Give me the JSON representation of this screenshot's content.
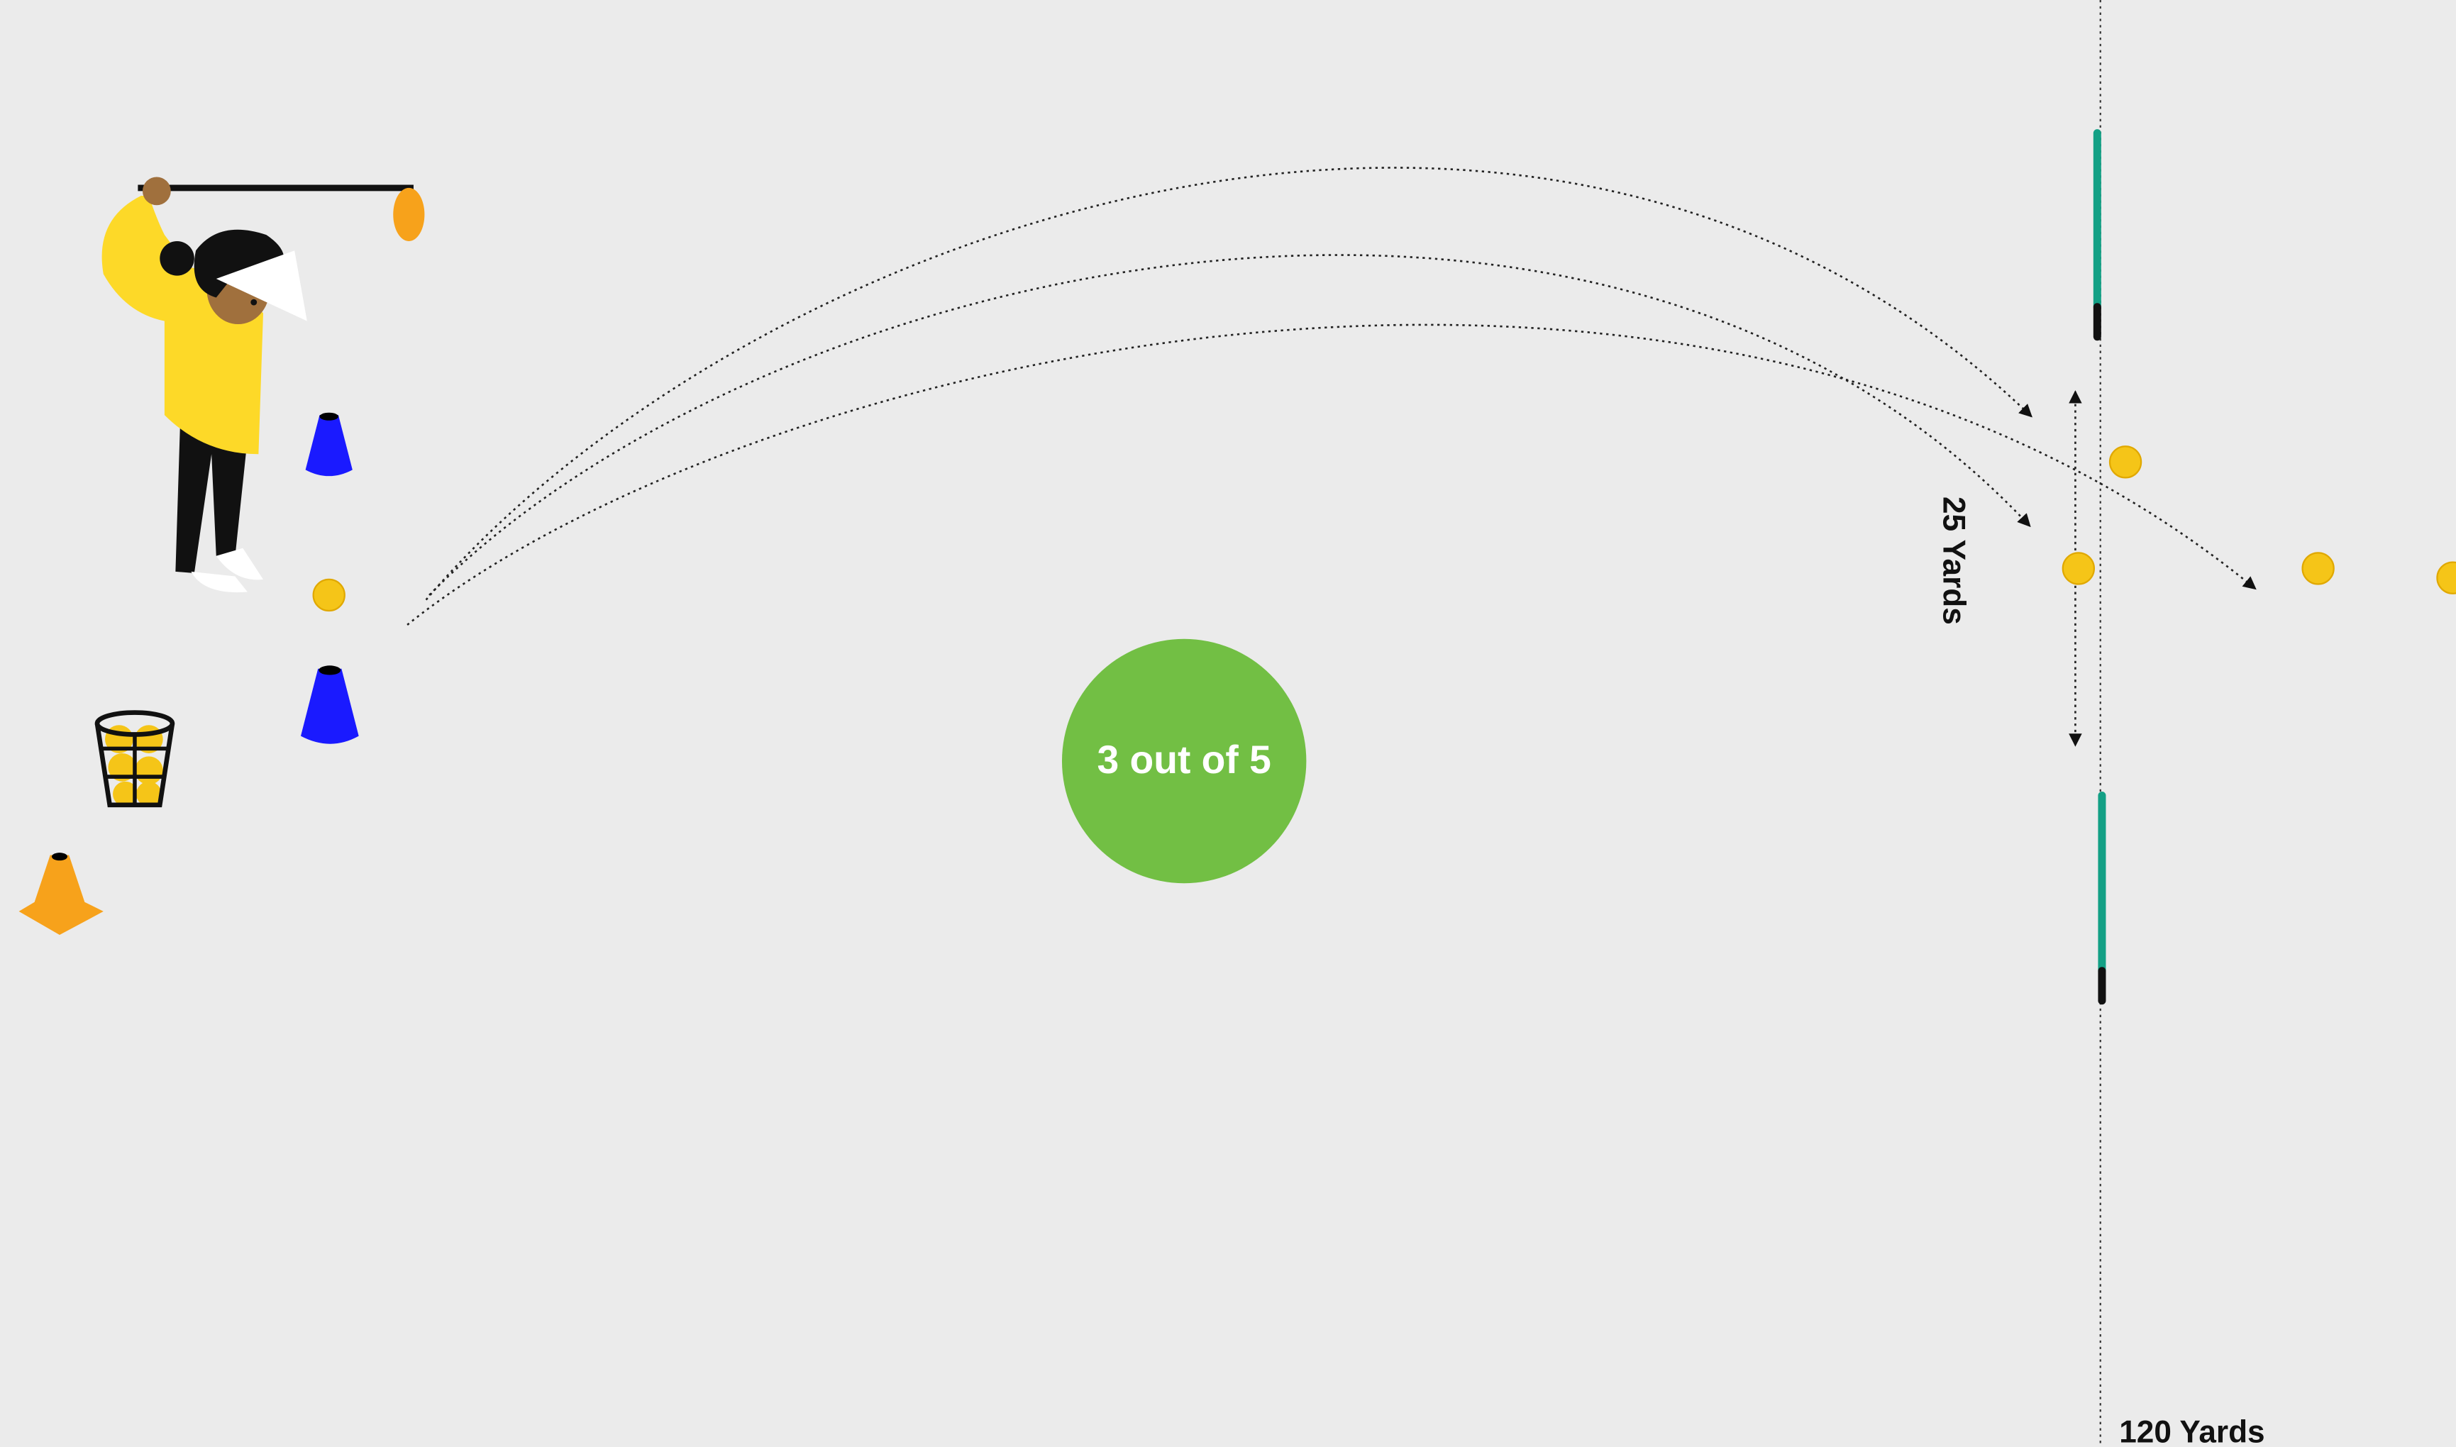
{
  "score_label": "3 out of 5",
  "width_label": "25 Yards",
  "distance_label": "120 Yards"
}
